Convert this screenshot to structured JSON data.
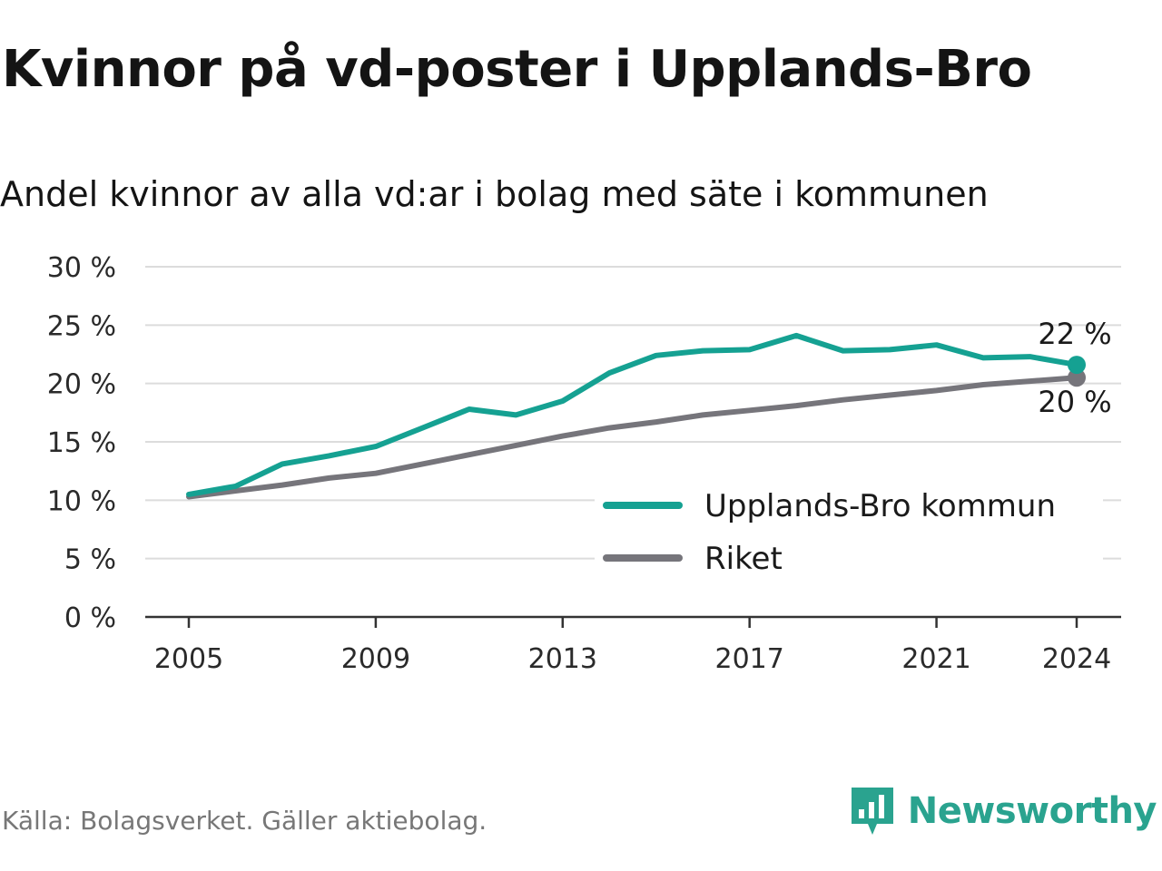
{
  "title": "Kvinnor på vd-poster i Upplands-Bro",
  "subtitle": "Andel kvinnor av alla vd:ar i bolag med säte i kommunen",
  "source": "Källa: Bolagsverket. Gäller aktiebolag.",
  "brand": {
    "name": "Newsworthy",
    "icon": "newsworthy-logo-icon",
    "color": "#2aa38f"
  },
  "chart_data": {
    "type": "line",
    "title": "Kvinnor på vd-poster i Upplands-Bro",
    "subtitle": "Andel kvinnor av alla vd:ar i bolag med säte i kommunen",
    "x": [
      2005,
      2006,
      2007,
      2008,
      2009,
      2010,
      2011,
      2012,
      2013,
      2014,
      2015,
      2016,
      2017,
      2018,
      2019,
      2020,
      2021,
      2022,
      2023,
      2024
    ],
    "series": [
      {
        "name": "Upplands-Bro kommun",
        "color": "#15a192",
        "values": [
          10.5,
          11.2,
          13.1,
          13.8,
          14.6,
          16.2,
          17.8,
          17.3,
          18.5,
          20.9,
          22.4,
          22.8,
          22.9,
          24.1,
          22.8,
          22.9,
          23.3,
          22.2,
          22.3,
          21.6
        ],
        "end_label": "22 %"
      },
      {
        "name": "Riket",
        "color": "#76757b",
        "values": [
          10.3,
          10.8,
          11.3,
          11.9,
          12.3,
          13.1,
          13.9,
          14.7,
          15.5,
          16.2,
          16.7,
          17.3,
          17.7,
          18.1,
          18.6,
          19.0,
          19.4,
          19.9,
          20.2,
          20.5
        ],
        "end_label": "20 %"
      }
    ],
    "y_ticks": [
      "0 %",
      "5 %",
      "10 %",
      "15 %",
      "20 %",
      "25 %",
      "30 %"
    ],
    "y_tick_values": [
      0,
      5,
      10,
      15,
      20,
      25,
      30
    ],
    "x_ticks": [
      "2005",
      "2009",
      "2013",
      "2017",
      "2021",
      "2024"
    ],
    "x_tick_values": [
      2005,
      2009,
      2013,
      2017,
      2021,
      2024
    ],
    "ylim": [
      0,
      30
    ],
    "xlim": [
      2005,
      2024
    ],
    "grid": true,
    "legend_position": "bottom-right"
  }
}
